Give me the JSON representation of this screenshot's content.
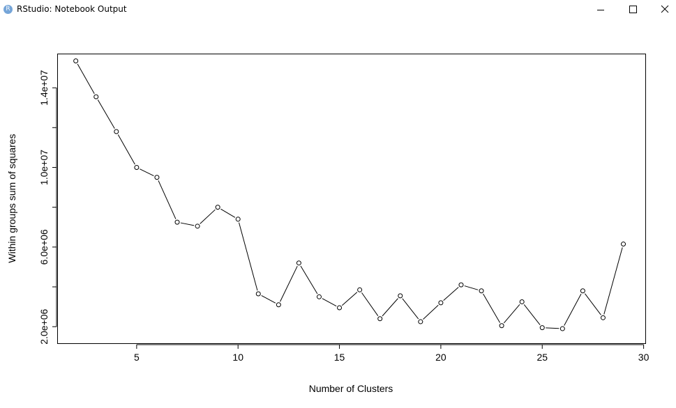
{
  "window": {
    "title": "RStudio: Notebook Output",
    "icon_letter": "R",
    "icon": "rstudio-icon",
    "controls": [
      "minimize-icon",
      "maximize-icon",
      "close-icon"
    ]
  },
  "chart_data": {
    "type": "line",
    "title": "",
    "xlabel": "Number of Clusters",
    "ylabel": "Within groups sum of squares",
    "xlim": [
      1.1,
      30.1
    ],
    "ylim": [
      1150000.0,
      15700000.0
    ],
    "xticks": [
      5,
      10,
      15,
      20,
      25,
      30
    ],
    "xtick_labels": [
      "5",
      "10",
      "15",
      "20",
      "25",
      "30"
    ],
    "yticks": [
      2000000,
      4000000,
      6000000,
      8000000,
      10000000,
      12000000,
      14000000
    ],
    "ytick_labels": [
      "2.0e+06",
      "",
      "6.0e+06",
      "",
      "1.0e+07",
      "",
      "1.4e+07"
    ],
    "grid": false,
    "marker": "open-circle",
    "x": [
      2,
      3,
      4,
      5,
      6,
      7,
      8,
      9,
      10,
      11,
      12,
      13,
      14,
      15,
      16,
      17,
      18,
      19,
      20,
      21,
      22,
      23,
      24,
      25,
      26,
      27,
      28,
      29
    ],
    "y": [
      15350000,
      13550000,
      11800000,
      10000000,
      9500000,
      7250000,
      7050000,
      8000000,
      7400000,
      3650000,
      3100000,
      5200000,
      3500000,
      2950000,
      3850000,
      2400000,
      3550000,
      2250000,
      3200000,
      4100000,
      3800000,
      2050000,
      3250000,
      1950000,
      1900000,
      3800000,
      2450000,
      6150000
    ]
  }
}
